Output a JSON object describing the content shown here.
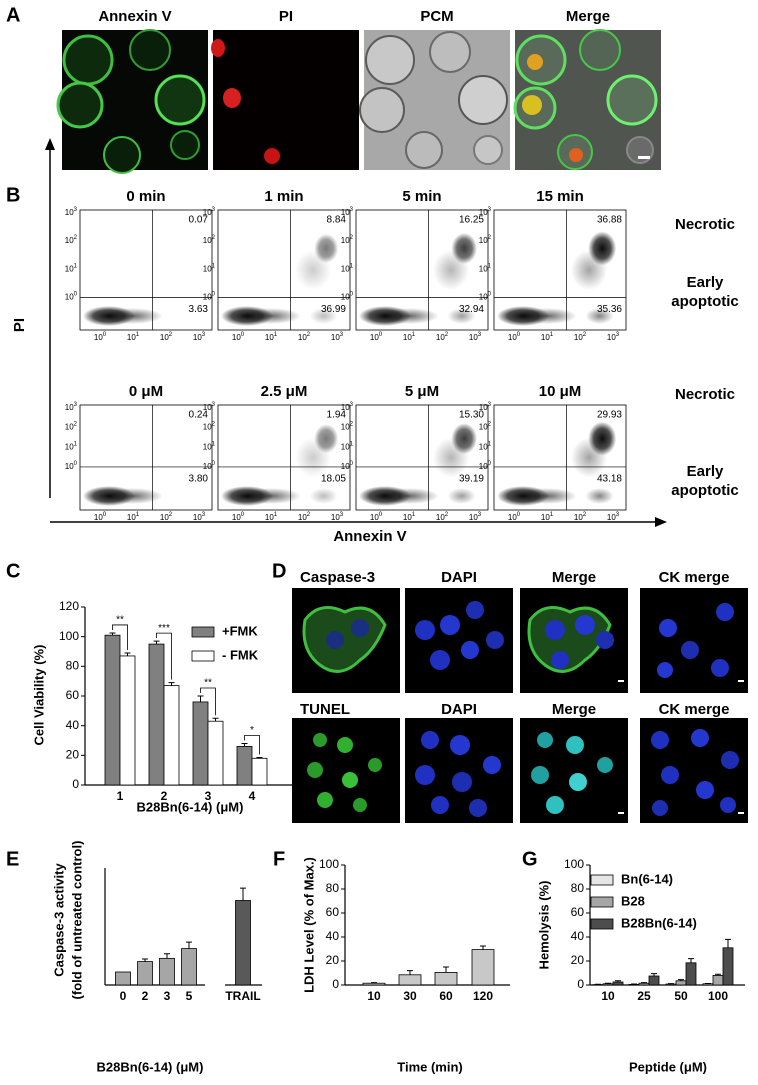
{
  "panel_labels": [
    "A",
    "B",
    "C",
    "D",
    "E",
    "F",
    "G"
  ],
  "panel_a": {
    "labels": [
      "Annexin V",
      "PI",
      "PCM",
      "Merge"
    ]
  },
  "panel_b": {
    "y_label": "PI",
    "x_label": "Annexin V",
    "right_labels": [
      "Necrotic",
      "Early",
      "apoptotic"
    ],
    "tick_base": "10",
    "tick_exponents": [
      "0",
      "1",
      "2",
      "3"
    ],
    "rows": [
      {
        "titles": [
          "0 min",
          "1 min",
          "5 min",
          "15 min"
        ],
        "upper": [
          "0.07",
          "8.84",
          "16.25",
          "36.88"
        ],
        "lower": [
          "3.63",
          "36.99",
          "32.94",
          "35.36"
        ]
      },
      {
        "titles": [
          "0 μM",
          "2.5 μM",
          "5 μM",
          "10 μM"
        ],
        "upper": [
          "0.24",
          "1.94",
          "15.30",
          "29.93"
        ],
        "lower": [
          "3.80",
          "18.05",
          "39.19",
          "43.18"
        ]
      }
    ]
  },
  "panel_d": {
    "top": [
      "Caspase-3",
      "DAPI",
      "Merge",
      "CK merge"
    ],
    "bottom": [
      "TUNEL",
      "DAPI",
      "Merge",
      "CK merge"
    ]
  },
  "chart_data": [
    {
      "type": "bar",
      "ylabel": "Cell Viability (%)",
      "xlabel": "B28Bn(6-14) (μM)",
      "categories": [
        "1",
        "2",
        "3",
        "4"
      ],
      "series": [
        {
          "name": "+FMK",
          "color": "#808080",
          "values": [
            101,
            95,
            56,
            26
          ],
          "errors": [
            1.5,
            2,
            4,
            2
          ]
        },
        {
          "name": "- FMK",
          "color": "#ffffff",
          "values": [
            87,
            67,
            43,
            18
          ],
          "errors": [
            2,
            2,
            2,
            0.5
          ]
        }
      ],
      "significance": [
        "**",
        "***",
        "**",
        "*"
      ],
      "ylim": [
        0,
        120
      ],
      "yticks": [
        0,
        20,
        40,
        60,
        80,
        100,
        120
      ],
      "legend": "upper right"
    },
    {
      "type": "bar",
      "ylabel": [
        "Caspase-3 activity",
        "(fold of untreated control)"
      ],
      "xlabel": "B28Bn(6-14) (μM)",
      "categories": [
        "0",
        "2",
        "3",
        "5",
        "TRAIL"
      ],
      "values": [
        1,
        1.8,
        2.05,
        2.8,
        6.5
      ],
      "errors": [
        0,
        0.2,
        0.35,
        0.5,
        0.95
      ],
      "colors": [
        "#a6a6a6",
        "#a6a6a6",
        "#a6a6a6",
        "#a6a6a6",
        "#595959"
      ],
      "ylim": [
        0,
        9
      ]
    },
    {
      "type": "bar",
      "ylabel": "LDH Level (% of Max.)",
      "xlabel": "Time (min)",
      "categories": [
        "10",
        "30",
        "60",
        "120"
      ],
      "values": [
        1.5,
        8.5,
        10.5,
        29.5
      ],
      "errors": [
        0.5,
        3.5,
        4.5,
        3
      ],
      "color": "#c8c8c8",
      "ylim": [
        0,
        100
      ],
      "yticks": [
        0,
        20,
        40,
        60,
        80,
        100
      ]
    },
    {
      "type": "bar",
      "ylabel": "Hemolysis (%)",
      "xlabel": "Peptide (μM)",
      "categories": [
        "10",
        "25",
        "50",
        "100"
      ],
      "series": [
        {
          "name": "Bn(6-14)",
          "color": "#e6e6e6",
          "values": [
            0.3,
            0.5,
            0.8,
            1
          ],
          "errors": [
            0.3,
            0.3,
            0.3,
            0.3
          ]
        },
        {
          "name": "B28",
          "color": "#a6a6a6",
          "values": [
            1,
            1.5,
            3.5,
            8
          ],
          "errors": [
            0.5,
            0.5,
            1,
            1
          ]
        },
        {
          "name": "B28Bn(6-14)",
          "color": "#4d4d4d",
          "values": [
            2.5,
            7.5,
            18.5,
            31
          ],
          "errors": [
            1,
            2,
            3.5,
            7
          ]
        }
      ],
      "ylim": [
        0,
        100
      ],
      "yticks": [
        0,
        20,
        40,
        60,
        80,
        100
      ],
      "legend": "upper left"
    }
  ]
}
